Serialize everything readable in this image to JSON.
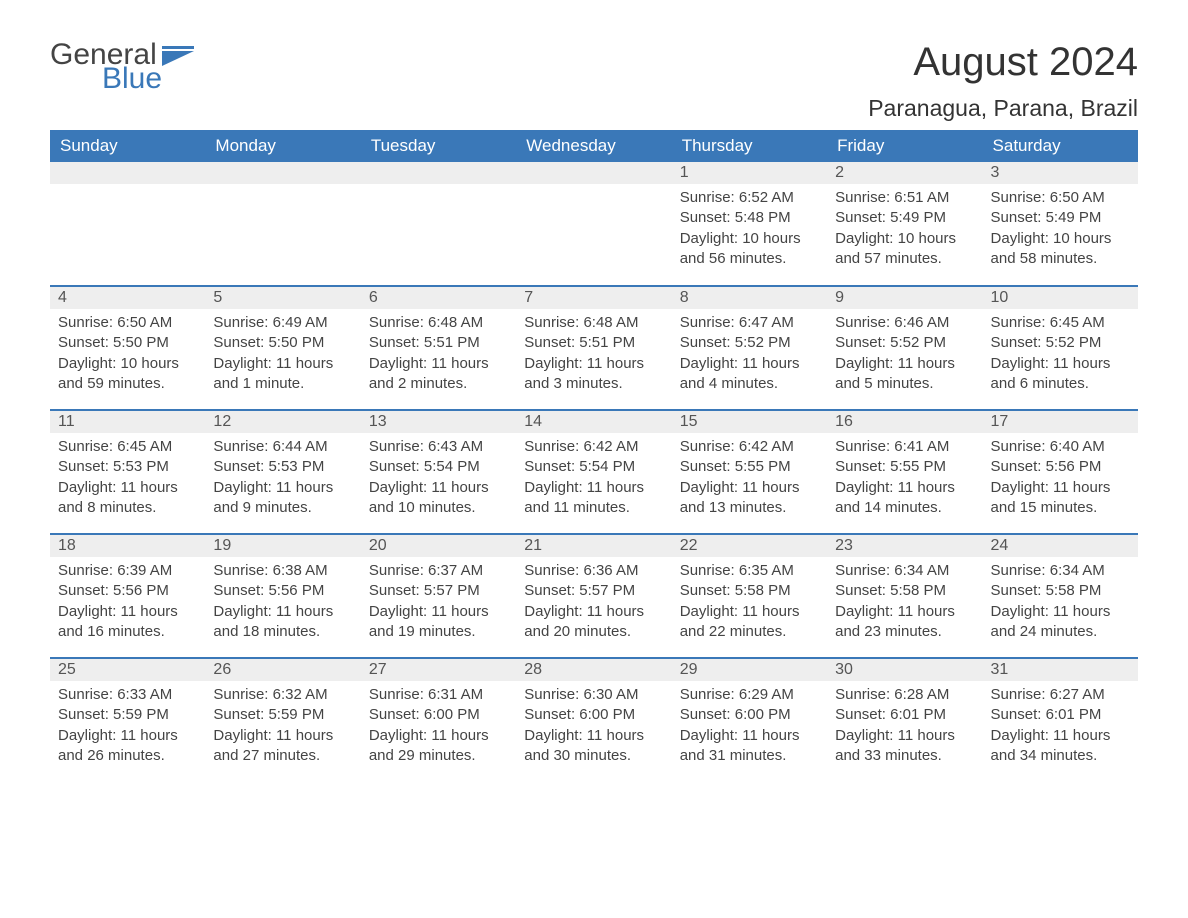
{
  "logo": {
    "general": "General",
    "blue": "Blue",
    "flag_color": "#3a78b8"
  },
  "title": "August 2024",
  "location": "Paranagua, Parana, Brazil",
  "colors": {
    "header_bg": "#3a78b8",
    "header_text": "#ffffff",
    "daynum_bg": "#eeeeee",
    "row_divider": "#3a78b8",
    "body_text": "#444444",
    "page_bg": "#ffffff"
  },
  "typography": {
    "title_fontsize": 40,
    "location_fontsize": 23,
    "dayheader_fontsize": 17,
    "daynum_fontsize": 16,
    "body_fontsize": 15
  },
  "day_headers": [
    "Sunday",
    "Monday",
    "Tuesday",
    "Wednesday",
    "Thursday",
    "Friday",
    "Saturday"
  ],
  "weeks": [
    [
      null,
      null,
      null,
      null,
      {
        "n": "1",
        "sr": "Sunrise: 6:52 AM",
        "ss": "Sunset: 5:48 PM",
        "dl": "Daylight: 10 hours and 56 minutes."
      },
      {
        "n": "2",
        "sr": "Sunrise: 6:51 AM",
        "ss": "Sunset: 5:49 PM",
        "dl": "Daylight: 10 hours and 57 minutes."
      },
      {
        "n": "3",
        "sr": "Sunrise: 6:50 AM",
        "ss": "Sunset: 5:49 PM",
        "dl": "Daylight: 10 hours and 58 minutes."
      }
    ],
    [
      {
        "n": "4",
        "sr": "Sunrise: 6:50 AM",
        "ss": "Sunset: 5:50 PM",
        "dl": "Daylight: 10 hours and 59 minutes."
      },
      {
        "n": "5",
        "sr": "Sunrise: 6:49 AM",
        "ss": "Sunset: 5:50 PM",
        "dl": "Daylight: 11 hours and 1 minute."
      },
      {
        "n": "6",
        "sr": "Sunrise: 6:48 AM",
        "ss": "Sunset: 5:51 PM",
        "dl": "Daylight: 11 hours and 2 minutes."
      },
      {
        "n": "7",
        "sr": "Sunrise: 6:48 AM",
        "ss": "Sunset: 5:51 PM",
        "dl": "Daylight: 11 hours and 3 minutes."
      },
      {
        "n": "8",
        "sr": "Sunrise: 6:47 AM",
        "ss": "Sunset: 5:52 PM",
        "dl": "Daylight: 11 hours and 4 minutes."
      },
      {
        "n": "9",
        "sr": "Sunrise: 6:46 AM",
        "ss": "Sunset: 5:52 PM",
        "dl": "Daylight: 11 hours and 5 minutes."
      },
      {
        "n": "10",
        "sr": "Sunrise: 6:45 AM",
        "ss": "Sunset: 5:52 PM",
        "dl": "Daylight: 11 hours and 6 minutes."
      }
    ],
    [
      {
        "n": "11",
        "sr": "Sunrise: 6:45 AM",
        "ss": "Sunset: 5:53 PM",
        "dl": "Daylight: 11 hours and 8 minutes."
      },
      {
        "n": "12",
        "sr": "Sunrise: 6:44 AM",
        "ss": "Sunset: 5:53 PM",
        "dl": "Daylight: 11 hours and 9 minutes."
      },
      {
        "n": "13",
        "sr": "Sunrise: 6:43 AM",
        "ss": "Sunset: 5:54 PM",
        "dl": "Daylight: 11 hours and 10 minutes."
      },
      {
        "n": "14",
        "sr": "Sunrise: 6:42 AM",
        "ss": "Sunset: 5:54 PM",
        "dl": "Daylight: 11 hours and 11 minutes."
      },
      {
        "n": "15",
        "sr": "Sunrise: 6:42 AM",
        "ss": "Sunset: 5:55 PM",
        "dl": "Daylight: 11 hours and 13 minutes."
      },
      {
        "n": "16",
        "sr": "Sunrise: 6:41 AM",
        "ss": "Sunset: 5:55 PM",
        "dl": "Daylight: 11 hours and 14 minutes."
      },
      {
        "n": "17",
        "sr": "Sunrise: 6:40 AM",
        "ss": "Sunset: 5:56 PM",
        "dl": "Daylight: 11 hours and 15 minutes."
      }
    ],
    [
      {
        "n": "18",
        "sr": "Sunrise: 6:39 AM",
        "ss": "Sunset: 5:56 PM",
        "dl": "Daylight: 11 hours and 16 minutes."
      },
      {
        "n": "19",
        "sr": "Sunrise: 6:38 AM",
        "ss": "Sunset: 5:56 PM",
        "dl": "Daylight: 11 hours and 18 minutes."
      },
      {
        "n": "20",
        "sr": "Sunrise: 6:37 AM",
        "ss": "Sunset: 5:57 PM",
        "dl": "Daylight: 11 hours and 19 minutes."
      },
      {
        "n": "21",
        "sr": "Sunrise: 6:36 AM",
        "ss": "Sunset: 5:57 PM",
        "dl": "Daylight: 11 hours and 20 minutes."
      },
      {
        "n": "22",
        "sr": "Sunrise: 6:35 AM",
        "ss": "Sunset: 5:58 PM",
        "dl": "Daylight: 11 hours and 22 minutes."
      },
      {
        "n": "23",
        "sr": "Sunrise: 6:34 AM",
        "ss": "Sunset: 5:58 PM",
        "dl": "Daylight: 11 hours and 23 minutes."
      },
      {
        "n": "24",
        "sr": "Sunrise: 6:34 AM",
        "ss": "Sunset: 5:58 PM",
        "dl": "Daylight: 11 hours and 24 minutes."
      }
    ],
    [
      {
        "n": "25",
        "sr": "Sunrise: 6:33 AM",
        "ss": "Sunset: 5:59 PM",
        "dl": "Daylight: 11 hours and 26 minutes."
      },
      {
        "n": "26",
        "sr": "Sunrise: 6:32 AM",
        "ss": "Sunset: 5:59 PM",
        "dl": "Daylight: 11 hours and 27 minutes."
      },
      {
        "n": "27",
        "sr": "Sunrise: 6:31 AM",
        "ss": "Sunset: 6:00 PM",
        "dl": "Daylight: 11 hours and 29 minutes."
      },
      {
        "n": "28",
        "sr": "Sunrise: 6:30 AM",
        "ss": "Sunset: 6:00 PM",
        "dl": "Daylight: 11 hours and 30 minutes."
      },
      {
        "n": "29",
        "sr": "Sunrise: 6:29 AM",
        "ss": "Sunset: 6:00 PM",
        "dl": "Daylight: 11 hours and 31 minutes."
      },
      {
        "n": "30",
        "sr": "Sunrise: 6:28 AM",
        "ss": "Sunset: 6:01 PM",
        "dl": "Daylight: 11 hours and 33 minutes."
      },
      {
        "n": "31",
        "sr": "Sunrise: 6:27 AM",
        "ss": "Sunset: 6:01 PM",
        "dl": "Daylight: 11 hours and 34 minutes."
      }
    ]
  ]
}
